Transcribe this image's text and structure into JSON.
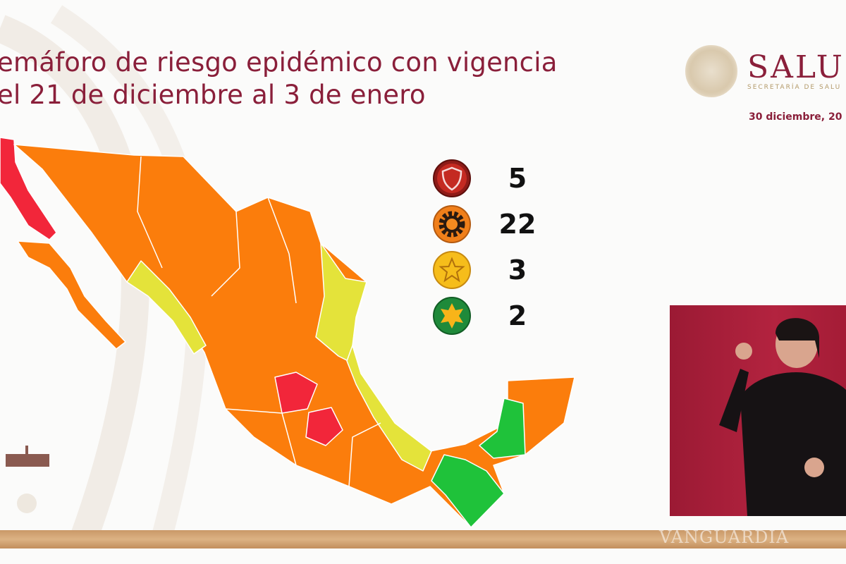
{
  "slide": {
    "title_line1": "emáforo de riesgo epidémico con vigencia",
    "title_line2": "el 21 de diciembre al 3 de enero",
    "brand": "SALU",
    "brand_subtitle": "SECRETARÍA DE SALU",
    "date": "30 diciembre, 20",
    "watermark": "VANGUARDIA"
  },
  "legend": [
    {
      "icon": "shield-icon",
      "level": "red",
      "color": "#b3261e",
      "count": "5"
    },
    {
      "icon": "gear-icon",
      "level": "orange",
      "color": "#f07f1a",
      "count": "22"
    },
    {
      "icon": "star-icon",
      "level": "yellow",
      "color": "#f6bd1b",
      "count": "3"
    },
    {
      "icon": "sun-icon",
      "level": "green",
      "color": "#1f8a3a",
      "count": "2"
    }
  ],
  "map_colors": {
    "red": "#f2263a",
    "orange": "#fb7d0c",
    "yellow": "#e4e33a",
    "green": "#1fc23a"
  }
}
